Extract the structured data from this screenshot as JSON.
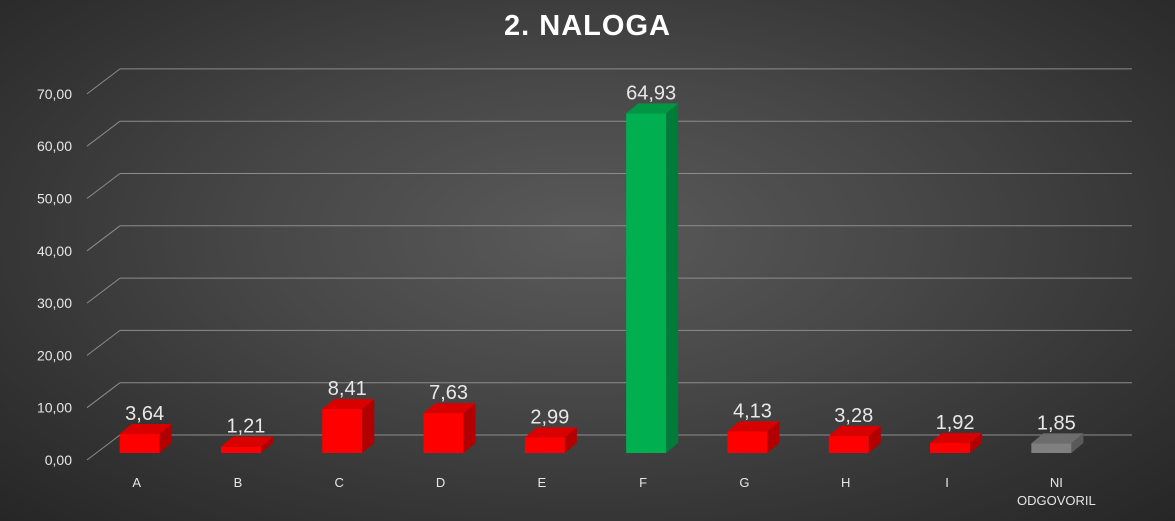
{
  "chart_data": {
    "type": "bar",
    "title": "2. NALOGA",
    "categories": [
      "A",
      "B",
      "C",
      "D",
      "E",
      "F",
      "G",
      "H",
      "I",
      "NI ODGOVORIL"
    ],
    "values": [
      3.64,
      1.21,
      8.41,
      7.63,
      2.99,
      64.93,
      4.13,
      3.28,
      1.92,
      1.85
    ],
    "data_labels": [
      "3,64",
      "1,21",
      "8,41",
      "7,63",
      "2,99",
      "64,93",
      "4,13",
      "3,28",
      "1,92",
      "1,85"
    ],
    "y_ticks": [
      "0,00",
      "10,00",
      "20,00",
      "30,00",
      "40,00",
      "50,00",
      "60,00",
      "70,00"
    ],
    "ylim": [
      0,
      70
    ],
    "grid": true,
    "legend": "none",
    "colors": {
      "default_bar": "#ff0000",
      "highlight_bar": "#00b050",
      "no_answer_bar": "#808080",
      "gridline": "#8c8c8c",
      "text": "#e6e6e6"
    },
    "bar_color_keys": [
      "default_bar",
      "default_bar",
      "default_bar",
      "default_bar",
      "default_bar",
      "highlight_bar",
      "default_bar",
      "default_bar",
      "default_bar",
      "no_answer_bar"
    ]
  }
}
